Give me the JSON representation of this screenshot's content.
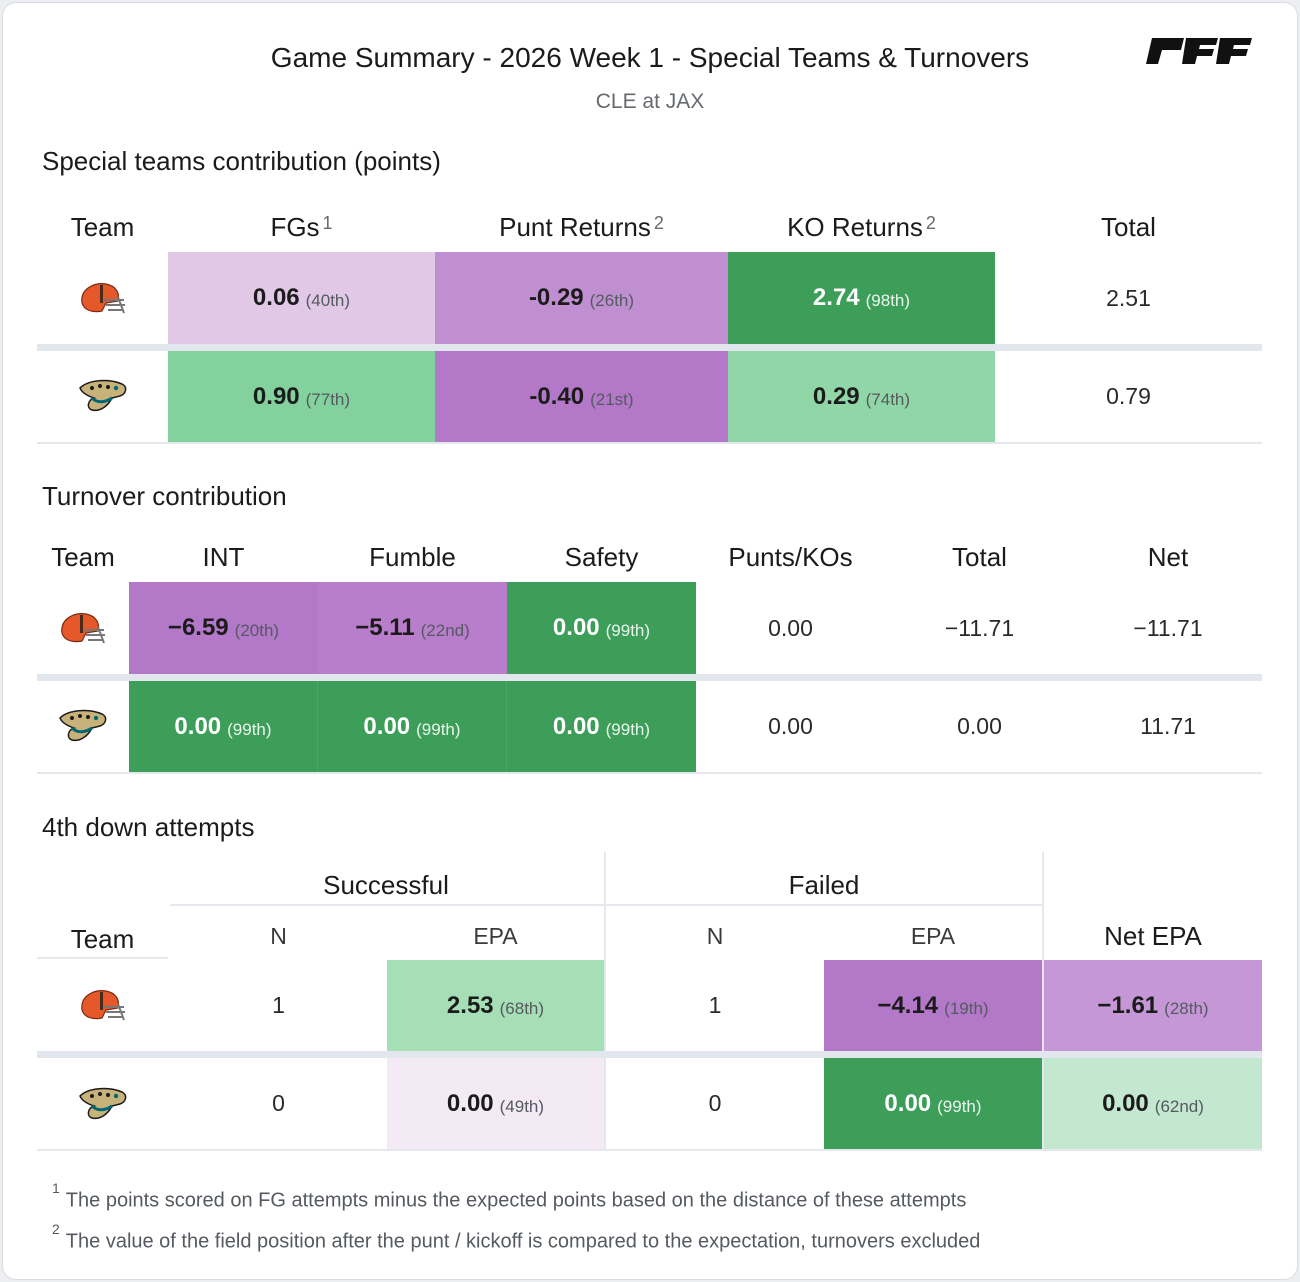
{
  "header": {
    "title": "Game Summary - 2026 Week 1 - Special Teams & Turnovers",
    "subtitle": "CLE at JAX",
    "logo_text": "PFF"
  },
  "special_teams": {
    "section_title": "Special teams contribution (points)",
    "columns": {
      "team": "Team",
      "fgs": "FGs",
      "fgs_note": "1",
      "punt_returns": "Punt Returns",
      "punt_returns_note": "2",
      "ko_returns": "KO Returns",
      "ko_returns_note": "2",
      "total": "Total"
    },
    "rows": [
      {
        "team": "CLE",
        "fgs": "0.06",
        "fgs_rank": "(40th)",
        "punt": "-0.29",
        "punt_rank": "(26th)",
        "ko": "2.74",
        "ko_rank": "(98th)",
        "total": "2.51"
      },
      {
        "team": "JAX",
        "fgs": "0.90",
        "fgs_rank": "(77th)",
        "punt": "-0.40",
        "punt_rank": "(21st)",
        "ko": "0.29",
        "ko_rank": "(74th)",
        "total": "0.79"
      }
    ]
  },
  "turnovers": {
    "section_title": "Turnover contribution",
    "columns": {
      "team": "Team",
      "int": "INT",
      "fumble": "Fumble",
      "safety": "Safety",
      "punts_kos": "Punts/KOs",
      "total": "Total",
      "net": "Net"
    },
    "rows": [
      {
        "team": "CLE",
        "int": "−6.59",
        "int_rank": "(20th)",
        "fumble": "−5.11",
        "fumble_rank": "(22nd)",
        "safety": "0.00",
        "safety_rank": "(99th)",
        "punts_kos": "0.00",
        "total": "−11.71",
        "net": "−11.71"
      },
      {
        "team": "JAX",
        "int": "0.00",
        "int_rank": "(99th)",
        "fumble": "0.00",
        "fumble_rank": "(99th)",
        "safety": "0.00",
        "safety_rank": "(99th)",
        "punts_kos": "0.00",
        "total": "0.00",
        "net": "11.71"
      }
    ]
  },
  "fourth_down": {
    "section_title": "4th down attempts",
    "groups": {
      "successful": "Successful",
      "failed": "Failed"
    },
    "columns": {
      "team": "Team",
      "n": "N",
      "epa": "EPA",
      "net_epa": "Net EPA"
    },
    "rows": [
      {
        "team": "CLE",
        "succ_n": "1",
        "succ_epa": "2.53",
        "succ_epa_rank": "(68th)",
        "fail_n": "1",
        "fail_epa": "−4.14",
        "fail_epa_rank": "(19th)",
        "net_epa": "−1.61",
        "net_epa_rank": "(28th)"
      },
      {
        "team": "JAX",
        "succ_n": "0",
        "succ_epa": "0.00",
        "succ_epa_rank": "(49th)",
        "fail_n": "0",
        "fail_epa": "0.00",
        "fail_epa_rank": "(99th)",
        "net_epa": "0.00",
        "net_epa_rank": "(62nd)"
      }
    ]
  },
  "footnotes": [
    {
      "num": "1",
      "text": "The points scored on FG attempts minus the expected points based on the distance of these attempts"
    },
    {
      "num": "2",
      "text": "The value of the field position after the punt / kickoff is compared to the expectation, turnovers excluded"
    }
  ],
  "colors": {
    "purple_light": "#e1c8e7",
    "purple_mid": "#c08fd2",
    "purple_dark": "#b378c8",
    "green_dark": "#3d9e5a",
    "green_mid": "#83d19c",
    "green_light": "#c3e8cf",
    "cle_orange": "#e4582a",
    "jax_teal": "#006778"
  }
}
